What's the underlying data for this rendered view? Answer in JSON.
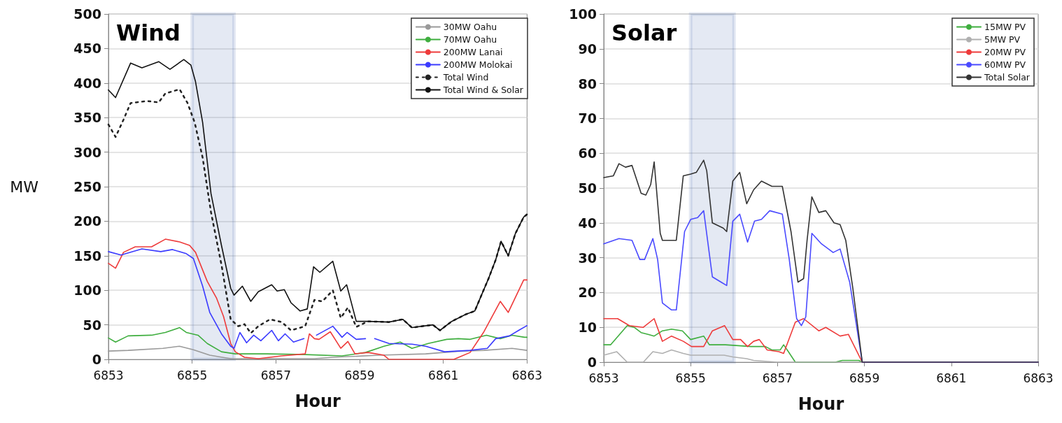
{
  "chart_data": [
    {
      "type": "line",
      "title": "Wind",
      "xlabel": "Hour",
      "ylabel": "MW",
      "xlim": [
        6853,
        6863
      ],
      "xticks": [
        6853,
        6855,
        6857,
        6859,
        6861,
        6863
      ],
      "ylim": [
        0,
        500
      ],
      "yticks": [
        0,
        50,
        100,
        150,
        200,
        250,
        300,
        350,
        400,
        450,
        500
      ],
      "grid": "y",
      "legend": "top right",
      "marker": "none",
      "line_style": "solid",
      "bands": [
        {
          "axis": "x",
          "from": 6855,
          "to": 6856,
          "color": "#1f4e9c"
        }
      ],
      "series": [
        {
          "name": "30MW Oahu",
          "color": "#9a9a9a",
          "x": [
            6853,
            6853.47,
            6854.3,
            6854.7,
            6855.03,
            6855.42,
            6855.92,
            6857.92,
            6858.36,
            6859.47,
            6860.58,
            6861.42,
            6861.97,
            6862.64,
            6863
          ],
          "values": [
            12,
            13,
            16,
            19,
            14,
            6,
            1,
            1,
            3,
            6,
            8,
            12,
            13,
            16,
            13
          ]
        },
        {
          "name": "70MW Oahu",
          "color": "#3fae3f",
          "x": [
            6853,
            6853.17,
            6853.47,
            6854.03,
            6854.36,
            6854.7,
            6854.86,
            6855.14,
            6855.36,
            6855.7,
            6856.03,
            6856.8,
            6857.7,
            6858.58,
            6859.14,
            6859.58,
            6859.97,
            6860.25,
            6860.64,
            6861.08,
            6861.36,
            6861.64,
            6862.03,
            6862.36,
            6862.64,
            6862.94,
            6863
          ],
          "values": [
            31,
            25,
            34,
            35,
            39,
            46,
            39,
            35,
            23,
            11,
            8,
            8,
            7,
            5,
            10,
            19,
            25,
            16,
            23,
            29,
            30,
            29,
            35,
            30,
            35,
            32,
            32
          ]
        },
        {
          "name": "200MW Lanai",
          "color": "#ee3b3b",
          "x": [
            6853,
            6853.17,
            6853.36,
            6853.64,
            6854.03,
            6854.36,
            6854.7,
            6854.94,
            6855.08,
            6855.36,
            6855.58,
            6855.75,
            6855.92,
            6856.03,
            6856.25,
            6856.58,
            6857.14,
            6857.7,
            6857.8,
            6857.92,
            6858.03,
            6858.3,
            6858.55,
            6858.72,
            6858.89,
            6859.2,
            6859.58,
            6859.7,
            6861.25,
            6861.64,
            6861.97,
            6862.36,
            6862.55,
            6862.92,
            6863
          ],
          "values": [
            139,
            132,
            155,
            163,
            163,
            174,
            170,
            165,
            155,
            113,
            89,
            62,
            23,
            11,
            3,
            1,
            5,
            8,
            37,
            30,
            29,
            40,
            16,
            26,
            8,
            10,
            6,
            0,
            0,
            10,
            40,
            84,
            68,
            115,
            115
          ]
        },
        {
          "name": "200MW Molokai",
          "color": "#3b3bff",
          "x": [
            6853,
            6853.3,
            6853.8,
            6854.25,
            6854.53,
            6854.86,
            6855.03,
            6855.25,
            6855.42,
            6855.7,
            6855.92,
            6856,
            6856.14,
            6856.3,
            6856.47,
            6856.64,
            6856.9,
            6857.06,
            6857.22,
            6857.42,
            6857.67,
            6857.8,
            6857.97,
            6858.36,
            6858.58,
            6858.7,
            6858.92,
            6859.14,
            6859.25,
            6859.36,
            6859.7,
            6860.25,
            6860.58,
            6861.03,
            6861.64,
            6862.05,
            6862.25,
            6862.58,
            6862.8,
            6863
          ],
          "values": [
            156,
            151,
            160,
            156,
            159,
            153,
            146,
            106,
            68,
            37,
            19,
            16,
            39,
            24,
            35,
            27,
            42,
            27,
            37,
            25,
            30,
            null,
            35,
            48,
            32,
            39,
            29,
            30,
            null,
            30,
            23,
            22,
            19,
            11,
            13,
            16,
            30,
            34,
            42,
            49
          ]
        },
        {
          "name": "Total Wind",
          "color": "#222222",
          "line_style": "dotted",
          "x": [
            6853,
            6853.17,
            6853.36,
            6853.53,
            6853.92,
            6854.2,
            6854.36,
            6854.7,
            6854.89,
            6855.06,
            6855.25,
            6855.45,
            6855.7,
            6855.92,
            6856.1,
            6856.25,
            6856.4,
            6856.58,
            6856.86,
            6857.14,
            6857.36,
            6857.7,
            6857.92,
            6858.11,
            6858.36,
            6858.55,
            6858.72,
            6858.92,
            6859.2,
            6859.7,
            6860.03,
            6860.25,
            6860.75,
            6860.92,
            6861.2,
            6861.53,
            6861.75,
            6862.08,
            6862.25,
            6862.38,
            6862.55,
            6862.72,
            6862.92,
            6863
          ],
          "values": [
            340,
            322,
            347,
            371,
            374,
            372,
            385,
            391,
            371,
            343,
            292,
            213,
            137,
            58,
            48,
            51,
            38,
            48,
            58,
            54,
            42,
            48,
            86,
            84,
            100,
            60,
            75,
            47,
            55,
            54,
            58,
            46,
            50,
            42,
            55,
            65,
            70,
            117,
            144,
            171,
            150,
            182,
            206,
            210
          ]
        },
        {
          "name": "Total Wind & Solar",
          "color": "#111111",
          "x": [
            6853,
            6853.17,
            6853.53,
            6853.8,
            6854.2,
            6854.47,
            6854.8,
            6854.97,
            6855.08,
            6855.25,
            6855.45,
            6855.7,
            6855.92,
            6856,
            6856.2,
            6856.4,
            6856.58,
            6856.9,
            6857.03,
            6857.2,
            6857.36,
            6857.58,
            6857.75,
            6857.9,
            6858.05,
            6858.36,
            6858.55,
            6858.69,
            6858.92,
            6859.2,
            6859.7,
            6860.03,
            6860.25,
            6860.75,
            6860.92,
            6861.2,
            6861.53,
            6861.75,
            6862.08,
            6862.25,
            6862.38,
            6862.55,
            6862.72,
            6862.92,
            6863
          ],
          "values": [
            390,
            379,
            429,
            422,
            431,
            420,
            434,
            426,
            402,
            343,
            240,
            165,
            103,
            93,
            106,
            84,
            98,
            108,
            99,
            101,
            82,
            70,
            73,
            134,
            126,
            142,
            99,
            108,
            55,
            55,
            54,
            58,
            46,
            50,
            42,
            55,
            65,
            70,
            117,
            144,
            171,
            150,
            182,
            206,
            210
          ]
        }
      ]
    },
    {
      "type": "line",
      "title": "Solar",
      "xlabel": "Hour",
      "xlim": [
        6853,
        6863
      ],
      "xticks": [
        6853,
        6855,
        6857,
        6859,
        6861,
        6863
      ],
      "ylim": [
        0,
        100
      ],
      "yticks": [
        0,
        10,
        20,
        30,
        40,
        50,
        60,
        70,
        80,
        90,
        100
      ],
      "grid": "y",
      "legend": "top right",
      "marker": "none",
      "line_style": "solid",
      "bands": [
        {
          "axis": "x",
          "from": 6855,
          "to": 6856,
          "color": "#1f4e9c"
        }
      ],
      "series": [
        {
          "name": "15MW PV",
          "color": "#3fae3f",
          "x": [
            6853,
            6853.16,
            6853.54,
            6853.7,
            6853.86,
            6854.02,
            6854.16,
            6854.35,
            6854.56,
            6854.81,
            6855,
            6855.3,
            6855.43,
            6855.8,
            6856.39,
            6856.72,
            6856.87,
            6857.06,
            6857.14,
            6857.25,
            6857.41,
            6858.33,
            6858.49,
            6858.87,
            6858.95,
            6863
          ],
          "values": [
            5,
            5,
            10.5,
            10,
            8.5,
            8,
            7.5,
            9,
            9.5,
            9,
            6.5,
            7.5,
            5,
            5,
            4.5,
            4.5,
            3.5,
            3.5,
            5,
            3,
            0,
            0,
            0.5,
            0.5,
            0,
            0
          ]
        },
        {
          "name": "5MW PV",
          "color": "#b0b0b0",
          "x": [
            6853,
            6853.3,
            6853.54,
            6853.91,
            6854.13,
            6854.35,
            6854.56,
            6854.83,
            6855,
            6855.77,
            6855.97,
            6856.29,
            6856.45,
            6856.99,
            6863
          ],
          "values": [
            2,
            3,
            0,
            0,
            3,
            2.5,
            3.5,
            2.5,
            2,
            2,
            1.5,
            1,
            0.5,
            0,
            0
          ]
        },
        {
          "name": "20MW PV",
          "color": "#ee3b3b",
          "x": [
            6853,
            6853.32,
            6853.59,
            6853.91,
            6854.16,
            6854.35,
            6854.56,
            6854.83,
            6855.02,
            6855.3,
            6855.5,
            6855.78,
            6855.97,
            6856.15,
            6856.31,
            6856.45,
            6856.58,
            6856.76,
            6857.03,
            6857.14,
            6857.41,
            6857.6,
            6857.95,
            6858.11,
            6858.44,
            6858.63,
            6858.95,
            6863
          ],
          "values": [
            12.5,
            12.5,
            10.5,
            10,
            12.5,
            6,
            7.5,
            6,
            4.5,
            4.5,
            9,
            10.5,
            6.5,
            6.5,
            4.5,
            6,
            6.5,
            3.5,
            3,
            2.5,
            11.5,
            12.5,
            9,
            10,
            7.5,
            8,
            0,
            0
          ]
        },
        {
          "name": "60MW PV",
          "color": "#4a4aff",
          "x": [
            6853,
            6853.35,
            6853.65,
            6853.83,
            6853.94,
            6854.13,
            6854.24,
            6854.35,
            6854.56,
            6854.67,
            6854.86,
            6855,
            6855.16,
            6855.3,
            6855.5,
            6855.7,
            6855.83,
            6855.97,
            6856.13,
            6856.31,
            6856.47,
            6856.63,
            6856.82,
            6857.11,
            6857.27,
            6857.44,
            6857.55,
            6857.65,
            6857.79,
            6858.01,
            6858.28,
            6858.44,
            6858.66,
            6858.95,
            6863
          ],
          "values": [
            34,
            35.5,
            35,
            29.5,
            29.5,
            35.5,
            29.5,
            17,
            15,
            15,
            37.5,
            41,
            41.5,
            43.5,
            24.5,
            23,
            22,
            40.5,
            42.5,
            34.5,
            40.5,
            41,
            43.5,
            42.5,
            29.5,
            12.5,
            10.5,
            13,
            37,
            34,
            31.5,
            32.5,
            23,
            0,
            0
          ]
        },
        {
          "name": "Total Solar",
          "color": "#333333",
          "x": [
            6853,
            6853.22,
            6853.35,
            6853.5,
            6853.65,
            6853.86,
            6853.97,
            6854.08,
            6854.16,
            6854.3,
            6854.35,
            6854.67,
            6854.83,
            6855,
            6855.13,
            6855.3,
            6855.37,
            6855.5,
            6855.75,
            6855.83,
            6855.97,
            6856.13,
            6856.29,
            6856.45,
            6856.63,
            6856.87,
            6857.11,
            6857.31,
            6857.47,
            6857.6,
            6857.68,
            6857.79,
            6857.95,
            6858.11,
            6858.3,
            6858.44,
            6858.57,
            6858.73,
            6858.95,
            6863
          ],
          "values": [
            53,
            53.5,
            57,
            56,
            56.5,
            48.5,
            48,
            51,
            57.5,
            37,
            35,
            35,
            53.5,
            54,
            54.5,
            58,
            55,
            40,
            38.5,
            37.5,
            52,
            54.5,
            45.5,
            49.5,
            52,
            50.5,
            50.5,
            37.5,
            23,
            24,
            35,
            47.5,
            43,
            43.5,
            40,
            39.5,
            35,
            21.5,
            0,
            0
          ]
        }
      ]
    }
  ]
}
